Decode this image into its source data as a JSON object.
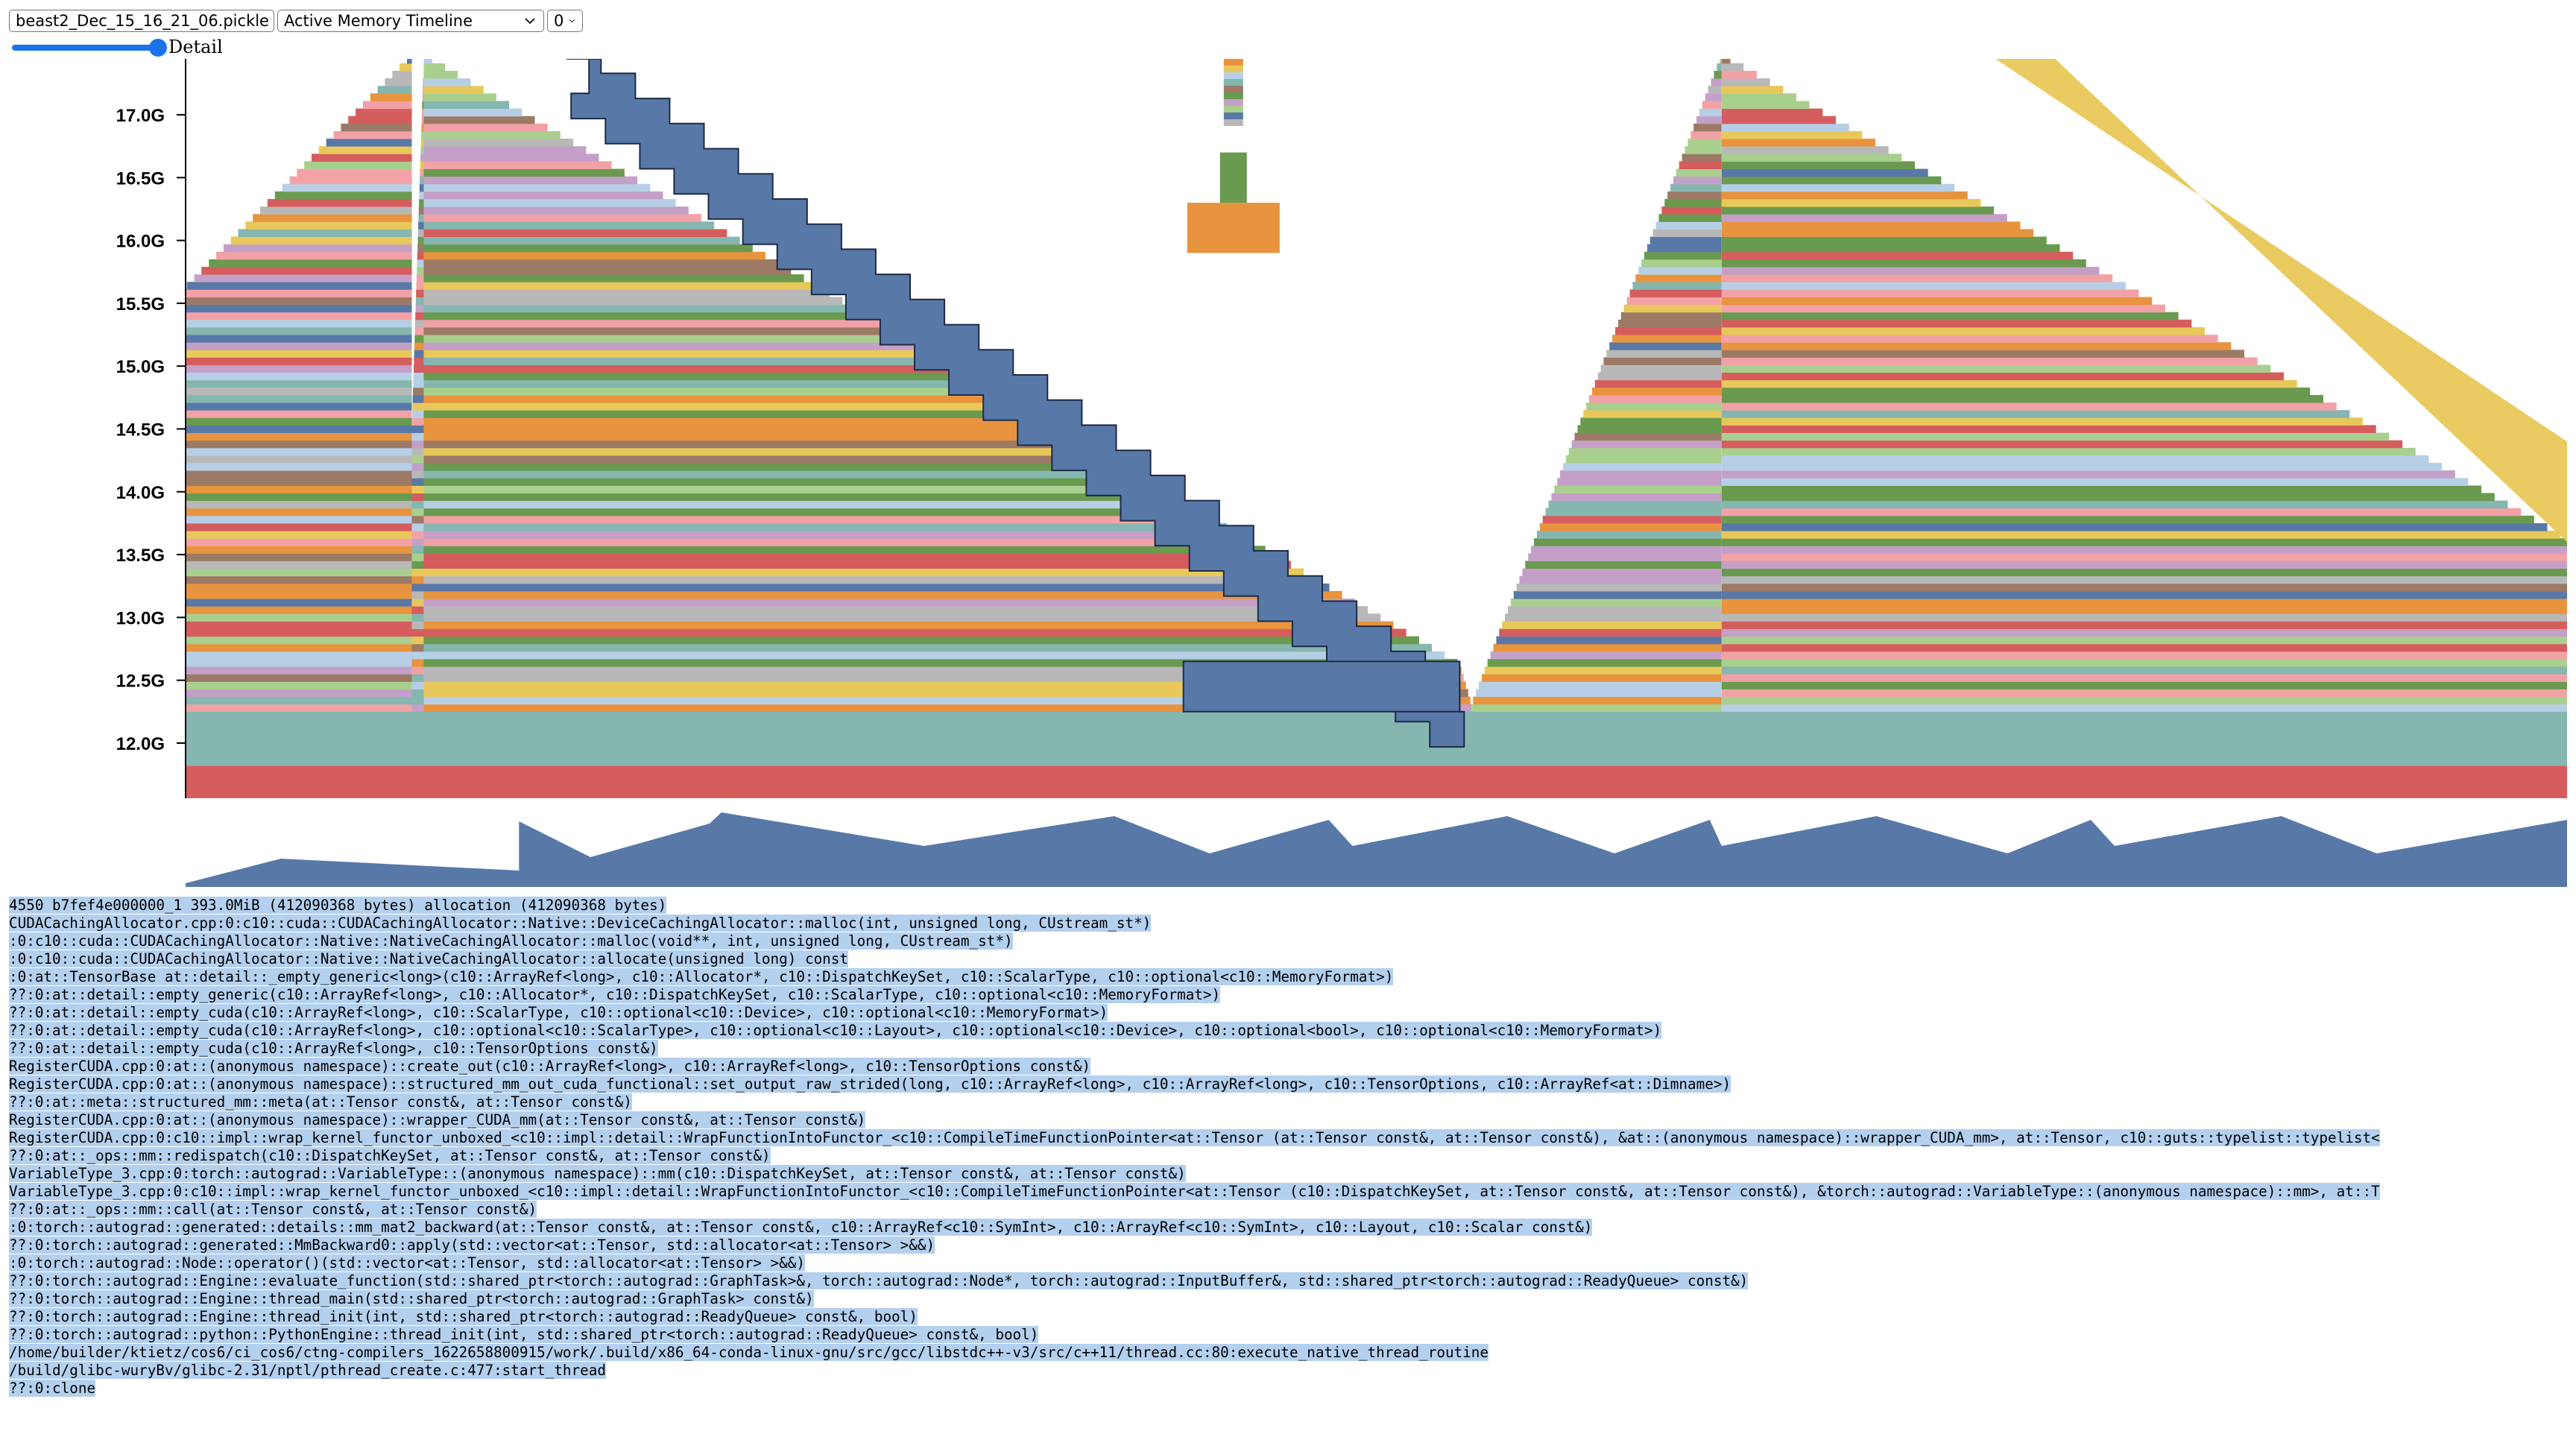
{
  "controls": {
    "file_select": {
      "value": "beast2_Dec_15_16_21_06.pickle"
    },
    "view_select": {
      "value": "Active Memory Timeline"
    },
    "index_select": {
      "value": "0"
    },
    "slider": {
      "label": "Detail",
      "value_fraction": 1.0
    },
    "accent_color": "#1a73e8"
  },
  "chart_data": {
    "type": "area",
    "title": "",
    "xlabel": "",
    "ylabel": "",
    "y_ticks": [
      "12.0G",
      "12.5G",
      "13.0G",
      "13.5G",
      "14.0G",
      "14.5G",
      "15.0G",
      "15.5G",
      "16.0G",
      "16.5G",
      "17.0G"
    ],
    "y_tick_values": [
      12.0,
      12.5,
      13.0,
      13.5,
      14.0,
      14.5,
      15.0,
      15.5,
      16.0,
      16.5,
      17.0
    ],
    "y_range_visible": [
      11.55,
      17.45
    ],
    "x_range": [
      0,
      1
    ],
    "baseline_layers": [
      {
        "color": "#d55d5d",
        "from": 11.55,
        "to": 11.82
      },
      {
        "color": "#86b6b0",
        "from": 11.82,
        "to": 12.25
      }
    ],
    "profile_segments": [
      {
        "t0": 0.0,
        "t1": 0.095,
        "top0": 15.6,
        "top1": 17.45
      },
      {
        "t0": 0.095,
        "t1": 0.1,
        "top0": 14.5,
        "top1": 17.45
      },
      {
        "t0": 0.1,
        "t1": 0.535,
        "top0": 17.45,
        "top1": 12.6
      },
      {
        "t0": 0.535,
        "t1": 0.54,
        "top0": 12.6,
        "top1": 12.28
      },
      {
        "t0": 0.54,
        "t1": 0.645,
        "top0": 12.28,
        "top1": 17.45
      },
      {
        "t0": 0.645,
        "t1": 1.0,
        "top0": 17.45,
        "top1": 13.6
      }
    ],
    "highlighted_allocation": {
      "size_label": "393.0MiB",
      "color": "#5878a8",
      "start_t": 0.16,
      "end_t": 0.535,
      "level_start": 17.45,
      "level_end": 12.25,
      "top_band": 12.65
    },
    "spike": {
      "t": 0.44,
      "colors": [
        "#e8943f",
        "#6a9a4f",
        "#e8d45a"
      ]
    },
    "yellow_band": {
      "color": "#e8c85a",
      "start_t": 0.76,
      "end_t": 1.0
    },
    "overview": {
      "color": "#5878a8",
      "points": [
        [
          0.0,
          0.05
        ],
        [
          0.04,
          0.38
        ],
        [
          0.14,
          0.22
        ],
        [
          0.14,
          0.88
        ],
        [
          0.17,
          0.4
        ],
        [
          0.22,
          0.85
        ],
        [
          0.225,
          1.0
        ],
        [
          0.31,
          0.55
        ],
        [
          0.31,
          0.85
        ],
        [
          0.31,
          0.55
        ],
        [
          0.39,
          0.95
        ],
        [
          0.43,
          0.45
        ],
        [
          0.48,
          0.9
        ],
        [
          0.49,
          0.55
        ],
        [
          0.555,
          0.95
        ],
        [
          0.6,
          0.45
        ],
        [
          0.64,
          0.9
        ],
        [
          0.645,
          0.55
        ],
        [
          0.71,
          0.95
        ],
        [
          0.765,
          0.45
        ],
        [
          0.8,
          0.9
        ],
        [
          0.81,
          0.55
        ],
        [
          0.88,
          0.95
        ],
        [
          0.92,
          0.45
        ],
        [
          1.0,
          0.9
        ]
      ]
    },
    "layer_palette": [
      "#e8943f",
      "#6a9a4f",
      "#d55d5d",
      "#86b6b0",
      "#5878a8",
      "#e8c85a",
      "#c4a0c8",
      "#f2a2a6",
      "#9c7a66",
      "#b8b8b8",
      "#b7cfe6",
      "#a9cf8f"
    ]
  },
  "trace": {
    "lines": [
      "4550 b7fef4e000000_1 393.0MiB (412090368 bytes) allocation (412090368 bytes)",
      "CUDACachingAllocator.cpp:0:c10::cuda::CUDACachingAllocator::Native::DeviceCachingAllocator::malloc(int, unsigned long, CUstream_st*)",
      ":0:c10::cuda::CUDACachingAllocator::Native::NativeCachingAllocator::malloc(void**, int, unsigned long, CUstream_st*)",
      ":0:c10::cuda::CUDACachingAllocator::Native::NativeCachingAllocator::allocate(unsigned long) const",
      ":0:at::TensorBase at::detail::_empty_generic<long>(c10::ArrayRef<long>, c10::Allocator*, c10::DispatchKeySet, c10::ScalarType, c10::optional<c10::MemoryFormat>)",
      "??:0:at::detail::empty_generic(c10::ArrayRef<long>, c10::Allocator*, c10::DispatchKeySet, c10::ScalarType, c10::optional<c10::MemoryFormat>)",
      "??:0:at::detail::empty_cuda(c10::ArrayRef<long>, c10::ScalarType, c10::optional<c10::Device>, c10::optional<c10::MemoryFormat>)",
      "??:0:at::detail::empty_cuda(c10::ArrayRef<long>, c10::optional<c10::ScalarType>, c10::optional<c10::Layout>, c10::optional<c10::Device>, c10::optional<bool>, c10::optional<c10::MemoryFormat>)",
      "??:0:at::detail::empty_cuda(c10::ArrayRef<long>, c10::TensorOptions const&)",
      "RegisterCUDA.cpp:0:at::(anonymous namespace)::create_out(c10::ArrayRef<long>, c10::ArrayRef<long>, c10::TensorOptions const&)",
      "RegisterCUDA.cpp:0:at::(anonymous namespace)::structured_mm_out_cuda_functional::set_output_raw_strided(long, c10::ArrayRef<long>, c10::ArrayRef<long>, c10::TensorOptions, c10::ArrayRef<at::Dimname>)",
      "??:0:at::meta::structured_mm::meta(at::Tensor const&, at::Tensor const&)",
      "RegisterCUDA.cpp:0:at::(anonymous namespace)::wrapper_CUDA_mm(at::Tensor const&, at::Tensor const&)",
      "RegisterCUDA.cpp:0:c10::impl::wrap_kernel_functor_unboxed_<c10::impl::detail::WrapFunctionIntoFunctor_<c10::CompileTimeFunctionPointer<at::Tensor (at::Tensor const&, at::Tensor const&), &at::(anonymous namespace)::wrapper_CUDA_mm>, at::Tensor, c10::guts::typelist::typelist<",
      "??:0:at::_ops::mm::redispatch(c10::DispatchKeySet, at::Tensor const&, at::Tensor const&)",
      "VariableType_3.cpp:0:torch::autograd::VariableType::(anonymous namespace)::mm(c10::DispatchKeySet, at::Tensor const&, at::Tensor const&)",
      "VariableType_3.cpp:0:c10::impl::wrap_kernel_functor_unboxed_<c10::impl::detail::WrapFunctionIntoFunctor_<c10::CompileTimeFunctionPointer<at::Tensor (c10::DispatchKeySet, at::Tensor const&, at::Tensor const&), &torch::autograd::VariableType::(anonymous namespace)::mm>, at::T",
      "??:0:at::_ops::mm::call(at::Tensor const&, at::Tensor const&)",
      ":0:torch::autograd::generated::details::mm_mat2_backward(at::Tensor const&, at::Tensor const&, c10::ArrayRef<c10::SymInt>, c10::ArrayRef<c10::SymInt>, c10::Layout, c10::Scalar const&)",
      "??:0:torch::autograd::generated::MmBackward0::apply(std::vector<at::Tensor, std::allocator<at::Tensor> >&&)",
      ":0:torch::autograd::Node::operator()(std::vector<at::Tensor, std::allocator<at::Tensor> >&&)",
      "??:0:torch::autograd::Engine::evaluate_function(std::shared_ptr<torch::autograd::GraphTask>&, torch::autograd::Node*, torch::autograd::InputBuffer&, std::shared_ptr<torch::autograd::ReadyQueue> const&)",
      "??:0:torch::autograd::Engine::thread_main(std::shared_ptr<torch::autograd::GraphTask> const&)",
      "??:0:torch::autograd::Engine::thread_init(int, std::shared_ptr<torch::autograd::ReadyQueue> const&, bool)",
      "??:0:torch::autograd::python::PythonEngine::thread_init(int, std::shared_ptr<torch::autograd::ReadyQueue> const&, bool)",
      "/home/builder/ktietz/cos6/ci_cos6/ctng-compilers_1622658800915/work/.build/x86_64-conda-linux-gnu/src/gcc/libstdc++-v3/src/c++11/thread.cc:80:execute_native_thread_routine",
      "/build/glibc-wuryBv/glibc-2.31/nptl/pthread_create.c:477:start_thread",
      "??:0:clone"
    ]
  }
}
